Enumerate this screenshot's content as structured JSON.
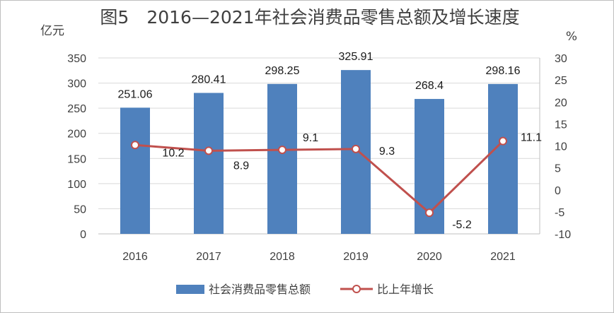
{
  "chart_data": {
    "type": "bar",
    "title": "图5　2016—2021年社会消费品零售总额及增长速度",
    "ylabel": "亿元",
    "y2label": "%",
    "categories": [
      "2016",
      "2017",
      "2018",
      "2019",
      "2020",
      "2021"
    ],
    "ylim": [
      0,
      350
    ],
    "yticks": [
      "0",
      "50",
      "100",
      "150",
      "200",
      "250",
      "300",
      "350"
    ],
    "y2lim": [
      -10,
      30
    ],
    "y2ticks": [
      "-10",
      "-5",
      "0",
      "5",
      "10",
      "15",
      "20",
      "25",
      "30"
    ],
    "grid": true,
    "legend_position": "bottom",
    "series": [
      {
        "name": "社会消费品零售总额",
        "type": "bar",
        "axis": "left",
        "color": "#4f81bd",
        "values": [
          251.06,
          280.41,
          298.25,
          325.91,
          268.4,
          298.16
        ],
        "labels": [
          "251.06",
          "280.41",
          "298.25",
          "325.91",
          "268.4",
          "298.16"
        ]
      },
      {
        "name": "比上年增长",
        "type": "line",
        "axis": "right",
        "color": "#c0504d",
        "marker_fill": "#ffffff",
        "values": [
          10.2,
          8.9,
          9.1,
          9.3,
          -5.2,
          11.1
        ],
        "labels": [
          "10.2",
          "8.9",
          "9.1",
          "9.3",
          "-5.2",
          "11.1"
        ]
      }
    ]
  }
}
